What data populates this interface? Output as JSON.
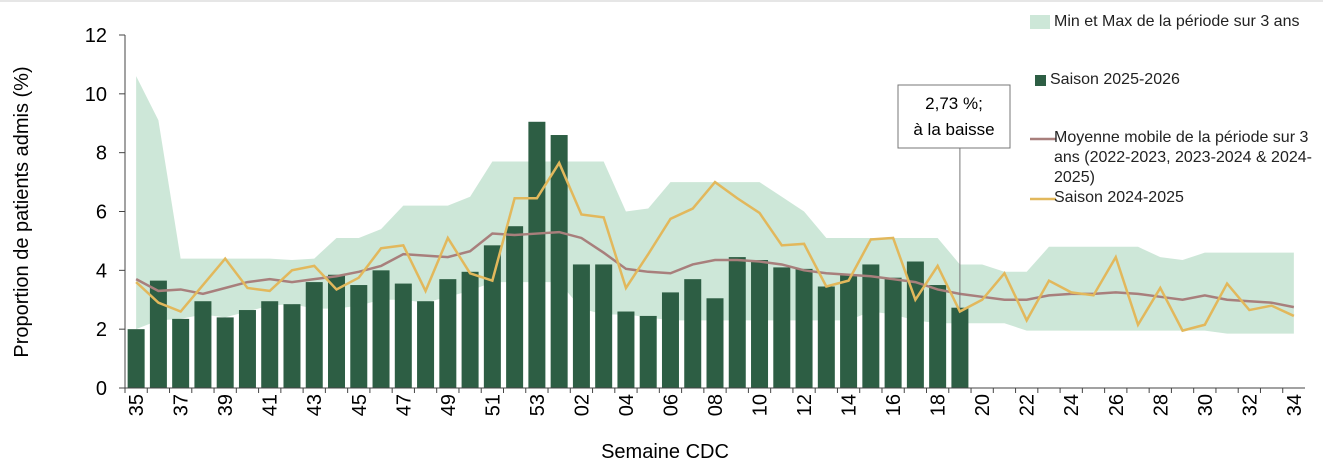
{
  "chart_data": {
    "type": "bar",
    "x_label": "Semaine CDC",
    "y_label": "Proportion de patients admis (%)",
    "ylim": [
      0,
      12
    ],
    "yticks": [
      0,
      2,
      4,
      6,
      8,
      10,
      12
    ],
    "categories": [
      "35",
      null,
      "37",
      null,
      "39",
      null,
      "41",
      null,
      "43",
      null,
      "45",
      null,
      "47",
      null,
      "49",
      null,
      "51",
      null,
      "53",
      null,
      "02",
      null,
      "04",
      null,
      "06",
      null,
      "08",
      null,
      "10",
      null,
      "12",
      null,
      "14",
      null,
      "16",
      null,
      "18",
      null,
      "20",
      null,
      "22",
      null,
      "24",
      null,
      "26",
      null,
      "28",
      null,
      "30",
      null,
      "32",
      null,
      "34"
    ],
    "series": [
      {
        "name": "Min et Max de la période sur 3 ans",
        "type": "range",
        "color": "#cde7d8",
        "lower": [
          2.0,
          2.3,
          2.35,
          2.5,
          2.4,
          2.6,
          2.8,
          2.85,
          2.7,
          2.7,
          2.8,
          3.0,
          3.0,
          2.9,
          3.1,
          3.3,
          3.6,
          3.6,
          3.6,
          3.6,
          2.7,
          2.5,
          2.5,
          2.4,
          2.3,
          2.3,
          2.3,
          2.3,
          2.3,
          2.3,
          2.3,
          2.3,
          2.3,
          2.6,
          2.5,
          2.3,
          2.2,
          2.2,
          2.2,
          2.2,
          1.95,
          1.95,
          1.95,
          1.95,
          1.95,
          1.95,
          1.95,
          1.95,
          1.95,
          1.85,
          1.85,
          1.85,
          1.85
        ],
        "upper": [
          10.6,
          9.1,
          4.4,
          4.4,
          4.4,
          4.4,
          4.4,
          4.35,
          4.4,
          5.1,
          5.1,
          5.4,
          6.2,
          6.2,
          6.2,
          6.5,
          7.7,
          7.7,
          7.7,
          7.7,
          7.7,
          7.7,
          6.0,
          6.1,
          7.0,
          7.0,
          7.0,
          7.0,
          7.0,
          6.5,
          6.0,
          5.1,
          5.1,
          5.1,
          5.1,
          5.1,
          5.1,
          4.2,
          4.2,
          3.95,
          3.95,
          4.8,
          4.8,
          4.8,
          4.8,
          4.8,
          4.45,
          4.35,
          4.6,
          4.6,
          4.6,
          4.6,
          4.6
        ]
      },
      {
        "name": "Saison 2025-2026",
        "type": "bar",
        "color": "#2d5e44",
        "values": [
          2.0,
          3.65,
          2.35,
          2.95,
          2.4,
          2.65,
          2.95,
          2.85,
          3.6,
          3.85,
          3.5,
          4.0,
          3.55,
          2.95,
          3.7,
          3.95,
          4.85,
          5.5,
          9.05,
          8.6,
          4.2,
          4.2,
          2.6,
          2.45,
          3.25,
          3.7,
          3.05,
          4.45,
          4.35,
          4.1,
          4.05,
          3.45,
          3.85,
          4.2,
          3.75,
          4.3,
          3.5,
          2.73,
          null,
          null,
          null,
          null,
          null,
          null,
          null,
          null,
          null,
          null,
          null,
          null,
          null,
          null,
          null
        ]
      },
      {
        "name": "Moyenne mobile de la période sur 3 ans (2022-2023, 2023-2024 & 2024-2025)",
        "type": "line",
        "color": "#a87f7c",
        "values": [
          3.7,
          3.3,
          3.35,
          3.2,
          3.4,
          3.6,
          3.7,
          3.6,
          3.7,
          3.8,
          3.95,
          4.15,
          4.55,
          4.5,
          4.45,
          4.65,
          5.25,
          5.2,
          5.25,
          5.3,
          5.1,
          4.6,
          4.05,
          3.95,
          3.9,
          4.2,
          4.35,
          4.35,
          4.3,
          4.2,
          4.0,
          3.9,
          3.85,
          3.8,
          3.7,
          3.6,
          3.35,
          3.2,
          3.1,
          3.0,
          3.0,
          3.15,
          3.2,
          3.2,
          3.25,
          3.2,
          3.1,
          3.0,
          3.15,
          3.0,
          2.95,
          2.9,
          2.75
        ]
      },
      {
        "name": "Saison 2024-2025",
        "type": "line",
        "color": "#e2b85c",
        "values": [
          3.6,
          2.9,
          2.6,
          3.5,
          4.4,
          3.4,
          3.3,
          4.0,
          4.15,
          3.35,
          3.75,
          4.75,
          4.85,
          3.3,
          5.1,
          3.9,
          3.65,
          6.45,
          6.45,
          7.65,
          5.9,
          5.8,
          3.4,
          4.55,
          5.75,
          6.1,
          7.0,
          6.45,
          5.95,
          4.85,
          4.9,
          3.45,
          3.65,
          5.05,
          5.1,
          3.0,
          4.15,
          2.6,
          3.0,
          3.9,
          2.3,
          3.65,
          3.25,
          3.15,
          4.45,
          2.15,
          3.4,
          1.95,
          2.15,
          3.55,
          2.65,
          2.8,
          2.45
        ]
      }
    ],
    "annotation": [
      "2,73 %;",
      "à la baisse"
    ]
  }
}
